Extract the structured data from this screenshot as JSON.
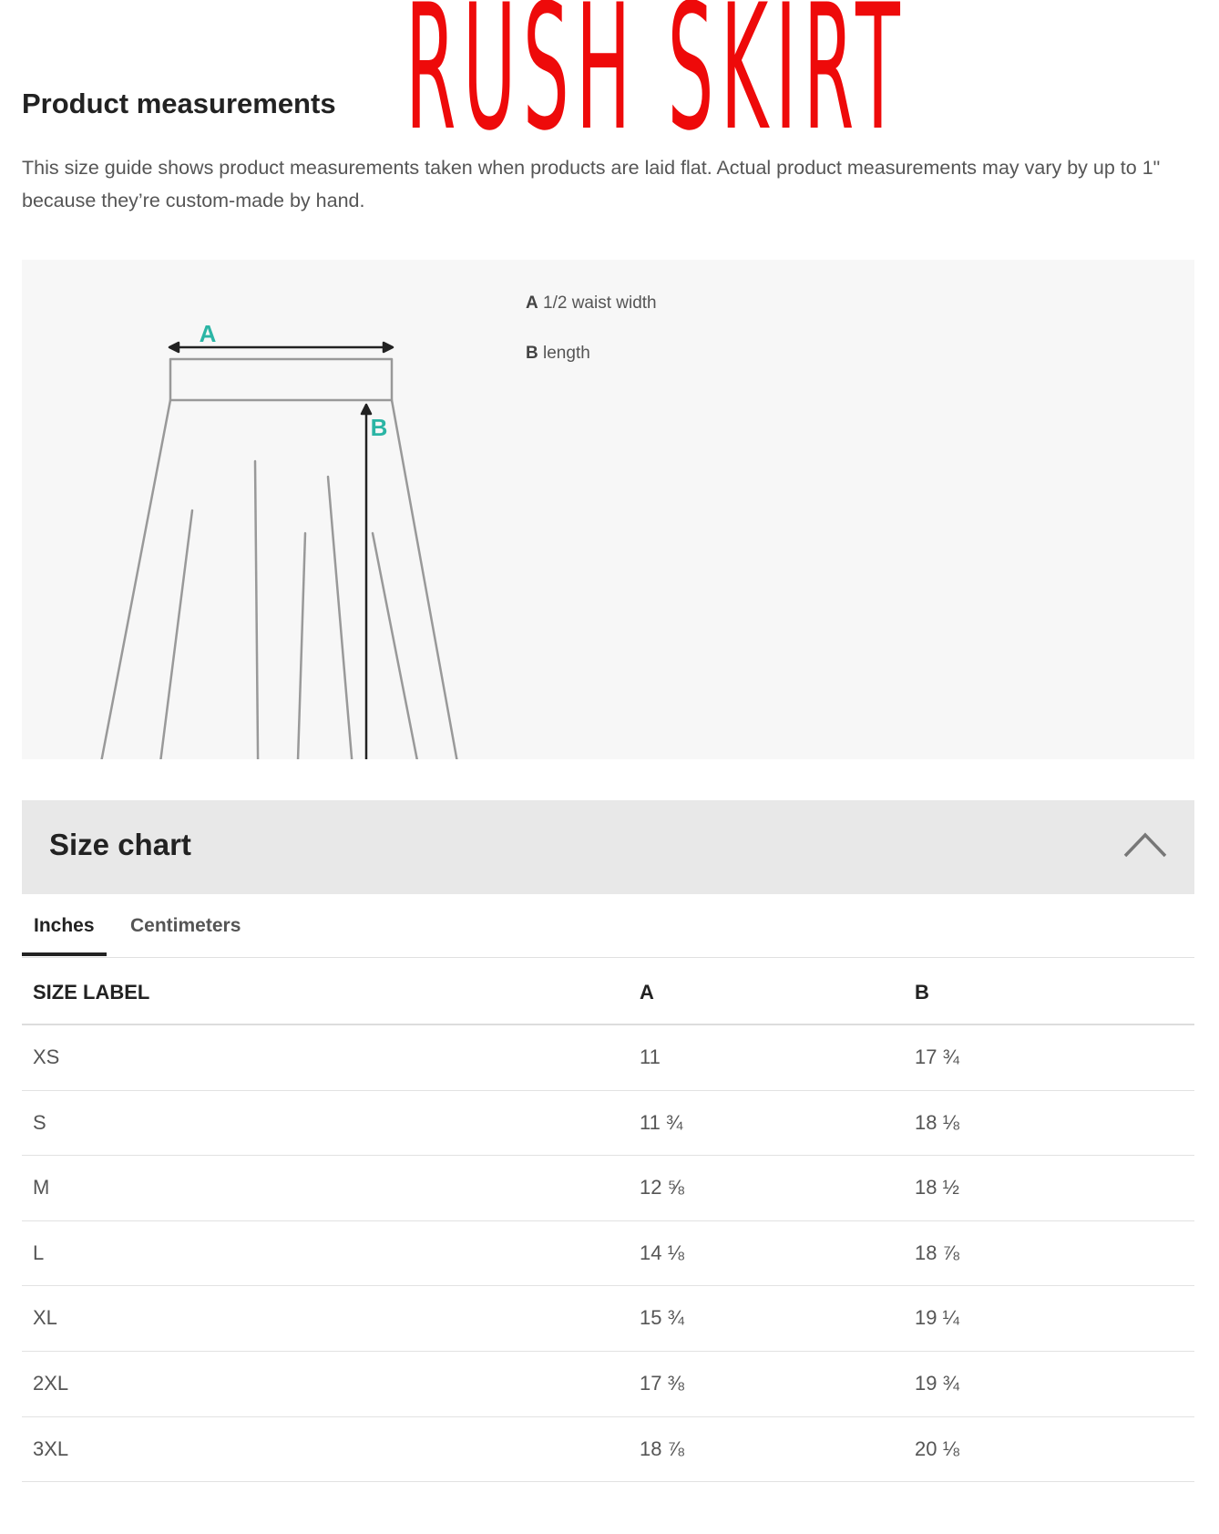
{
  "header": {
    "title": "Product measurements",
    "logo_text": "RUSH SKIRT",
    "logo_color": "#ee0a0a"
  },
  "description": "This size guide shows product measurements taken when products are laid flat. Actual product measurements may vary by up to 1\" because they’re custom-made by hand.",
  "diagram": {
    "label_a": "A",
    "label_b": "B",
    "accent_color": "#2bb5a5"
  },
  "legend": [
    {
      "key": "A",
      "text": "1/2 waist width"
    },
    {
      "key": "B",
      "text": "length"
    }
  ],
  "size_chart": {
    "title": "Size chart",
    "toggle_icon": "chevron-up-icon",
    "tabs": [
      {
        "label": "Inches",
        "active": true
      },
      {
        "label": "Centimeters",
        "active": false
      }
    ],
    "columns": [
      "SIZE LABEL",
      "A",
      "B"
    ],
    "rows": [
      [
        "XS",
        "11",
        "17 ¾"
      ],
      [
        "S",
        "11 ¾",
        "18 ⅛"
      ],
      [
        "M",
        "12 ⅝",
        "18 ½"
      ],
      [
        "L",
        "14 ⅛",
        "18 ⅞"
      ],
      [
        "XL",
        "15 ¾",
        "19 ¼"
      ],
      [
        "2XL",
        "17 ⅜",
        "19 ¾"
      ],
      [
        "3XL",
        "18 ⅞",
        "20 ⅛"
      ]
    ]
  }
}
